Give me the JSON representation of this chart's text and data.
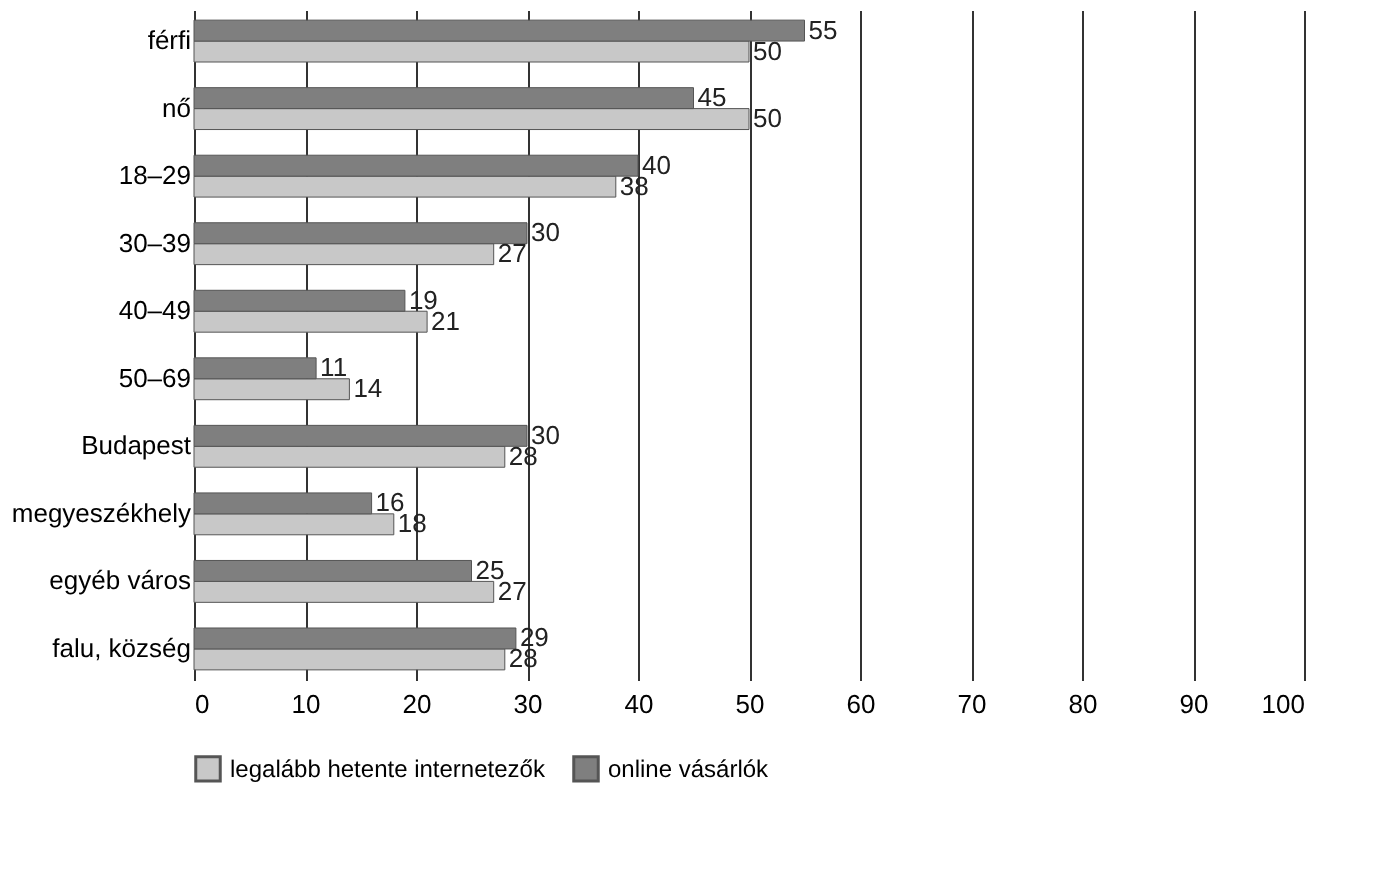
{
  "chart_data": {
    "type": "bar",
    "orientation": "horizontal",
    "categories": [
      "férfi",
      "nő",
      "18–29",
      "30–39",
      "40–49",
      "50–69",
      "Budapest",
      "megyeszékhely",
      "egyéb város",
      "falu, község"
    ],
    "series": [
      {
        "name": "legalább hetente internetezők",
        "color": "#c8c8c8",
        "values": [
          50,
          50,
          38,
          27,
          21,
          14,
          28,
          18,
          27,
          28
        ]
      },
      {
        "name": "online vásárlók",
        "color": "#7f7f7f",
        "values": [
          55,
          45,
          40,
          30,
          19,
          11,
          30,
          16,
          25,
          29
        ]
      }
    ],
    "xlim": [
      0,
      100
    ],
    "xticks": [
      0,
      10,
      20,
      30,
      40,
      50,
      60,
      70,
      80,
      90,
      100
    ],
    "grid": "x",
    "legend": "bottom",
    "data_labels": true
  }
}
